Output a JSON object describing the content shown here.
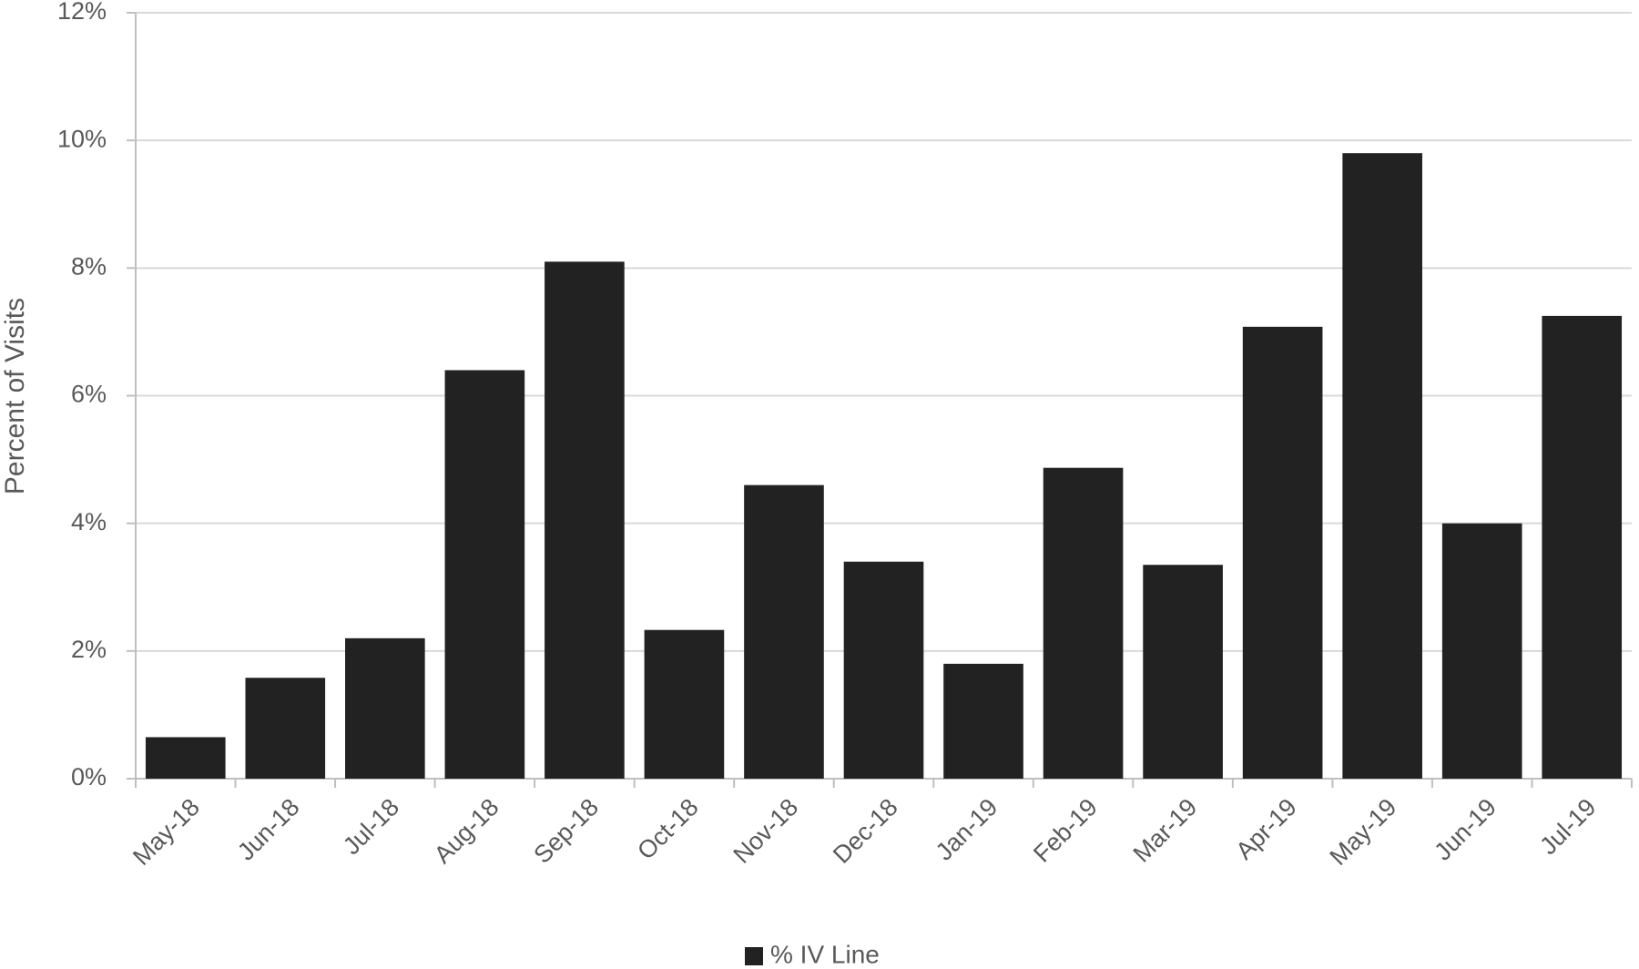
{
  "chart_data": {
    "type": "bar",
    "y_label": "Percent of Visits",
    "categories": [
      "May-18",
      "Jun-18",
      "Jul-18",
      "Aug-18",
      "Sep-18",
      "Oct-18",
      "Nov-18",
      "Dec-18",
      "Jan-19",
      "Feb-19",
      "Mar-19",
      "Apr-19",
      "May-19",
      "Jun-19",
      "Jul-19"
    ],
    "series": [
      {
        "name": "% IV Line",
        "color": "#222222",
        "values": [
          0.65,
          1.58,
          2.2,
          6.4,
          8.1,
          2.33,
          4.6,
          3.4,
          1.8,
          4.87,
          3.35,
          7.08,
          9.8,
          4.0,
          7.25
        ]
      }
    ],
    "ylim": [
      0,
      12
    ],
    "yticks": [
      {
        "value": 0,
        "label": "0%"
      },
      {
        "value": 2,
        "label": "2%"
      },
      {
        "value": 4,
        "label": "4%"
      },
      {
        "value": 6,
        "label": "6%"
      },
      {
        "value": 8,
        "label": "8%"
      },
      {
        "value": 10,
        "label": "10%"
      },
      {
        "value": 12,
        "label": "12%"
      }
    ],
    "grid": true,
    "legend": "bottom"
  }
}
